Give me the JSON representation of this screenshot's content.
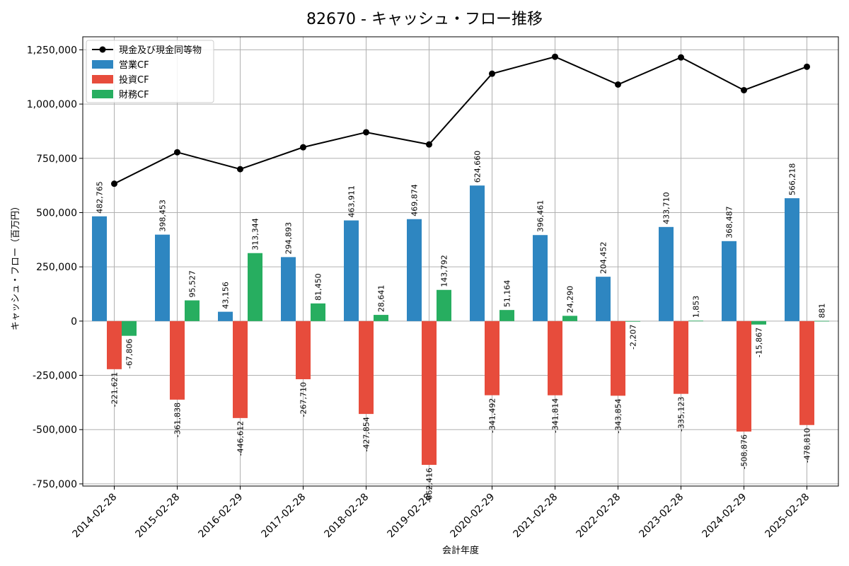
{
  "chart_data": {
    "type": "bar",
    "title": "82670 - キャッシュ・フロー推移",
    "xlabel": "会計年度",
    "ylabel": "キャッシュ・フロー（百万円）",
    "categories": [
      "2014-02-28",
      "2015-02-28",
      "2016-02-29",
      "2017-02-28",
      "2018-02-28",
      "2019-02-28",
      "2020-02-29",
      "2021-02-28",
      "2022-02-28",
      "2023-02-28",
      "2024-02-29",
      "2025-02-28"
    ],
    "ylim": [
      -760000,
      1310000
    ],
    "yticks": [
      -750000,
      -500000,
      -250000,
      0,
      250000,
      500000,
      750000,
      1000000,
      1250000
    ],
    "ytick_labels": [
      "-750,000",
      "-500,000",
      "-250,000",
      "0",
      "250,000",
      "500,000",
      "750,000",
      "1,000,000",
      "1,250,000"
    ],
    "grid": true,
    "legend_position": "top-left",
    "series": [
      {
        "name": "営業CF",
        "kind": "bar",
        "color": "#2e86c1",
        "values": [
          482765,
          398453,
          43156,
          294893,
          463911,
          469874,
          624660,
          396461,
          204452,
          433710,
          368487,
          566218
        ],
        "labels": [
          "482,765",
          "398,453",
          "43,156",
          "294,893",
          "463,911",
          "469,874",
          "624,660",
          "396,461",
          "204,452",
          "433,710",
          "368,487",
          "566,218"
        ]
      },
      {
        "name": "投資CF",
        "kind": "bar",
        "color": "#e74c3c",
        "values": [
          -221621,
          -361838,
          -446612,
          -267710,
          -427854,
          -662416,
          -341492,
          -341814,
          -343854,
          -335123,
          -508876,
          -478810
        ],
        "labels": [
          "-221,621",
          "-361,838",
          "-446,612",
          "-267,710",
          "-427,854",
          "-662,416",
          "-341,492",
          "-341,814",
          "-343,854",
          "-335,123",
          "-508,876",
          "-478,810"
        ]
      },
      {
        "name": "財務CF",
        "kind": "bar",
        "color": "#27ae60",
        "values": [
          -67806,
          95527,
          313344,
          81450,
          28641,
          143792,
          51164,
          24290,
          -2207,
          1853,
          -15867,
          881
        ],
        "labels": [
          "-67,806",
          "95,527",
          "313,344",
          "81,450",
          "28,641",
          "143,792",
          "51,164",
          "24,290",
          "-2,207",
          "1,853",
          "-15,867",
          "881"
        ]
      },
      {
        "name": "現金及び現金同等物",
        "kind": "line",
        "color": "#000000",
        "values": [
          633000,
          778000,
          700000,
          801000,
          870000,
          814000,
          1140000,
          1218000,
          1090000,
          1215000,
          1064000,
          1172000
        ]
      }
    ]
  }
}
